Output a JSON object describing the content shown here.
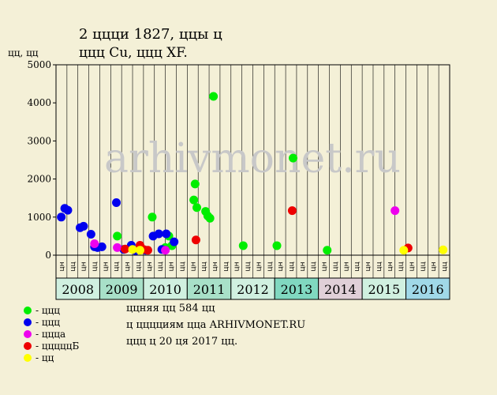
{
  "title_line1": "2 ццци 1827, ццы ц",
  "title_line2": "ццц Cu, ццц XF.",
  "ylabel": "цц, цц",
  "watermark": "arhivmonet.ru",
  "colors": {
    "background": "#f4f0d7",
    "plot_bg": "#f4f0d7",
    "green": "#00ee00",
    "blue": "#0000ee",
    "magenta": "#ee00ee",
    "red": "#ee0000",
    "yellow": "#ffff00",
    "year_light": "#d0f0e0",
    "year_mid": "#a8e0c8",
    "year_teal": "#80d8c0",
    "year_pink": "#e0d0d8",
    "year_blue": "#a0d8e8"
  },
  "legend": [
    {
      "color": "#00ee00",
      "label": "- ццц"
    },
    {
      "color": "#0000ee",
      "label": "- ццц"
    },
    {
      "color": "#ee00ee",
      "label": "- ццца"
    },
    {
      "color": "#ee0000",
      "label": "- цццццБ"
    },
    {
      "color": "#ffff00",
      "label": "- цц"
    }
  ],
  "info": {
    "line1": "ццняя цц 584 цц",
    "line2": "ц цццциям цца ARHIVMONET.RU",
    "line3": "ццц ц 20 ця 2017 цц."
  },
  "chart_data": {
    "type": "scatter",
    "ylim": [
      0,
      5000
    ],
    "yticks": [
      0,
      1000,
      2000,
      3000,
      4000,
      5000
    ],
    "x_unit_labels": [
      "цн",
      "цц",
      "цн",
      "цц"
    ],
    "years": [
      {
        "label": "2008",
        "color": "#d0f0e0"
      },
      {
        "label": "2009",
        "color": "#a8e0c8"
      },
      {
        "label": "2010",
        "color": "#d0f0e0"
      },
      {
        "label": "2011",
        "color": "#a8e0c8"
      },
      {
        "label": "2012",
        "color": "#d0f0e0"
      },
      {
        "label": "2013",
        "color": "#80d8c0"
      },
      {
        "label": "2014",
        "color": "#e0d0d8"
      },
      {
        "label": "2015",
        "color": "#d0f0e0"
      },
      {
        "label": "2016",
        "color": "#a0d8e8"
      }
    ],
    "series": [
      {
        "name": "green",
        "color": "#00ee00",
        "points": [
          [
            2009.4,
            500
          ],
          [
            2010.2,
            1000
          ],
          [
            2010.5,
            200
          ],
          [
            2010.58,
            500
          ],
          [
            2010.65,
            250
          ],
          [
            2011.15,
            1450
          ],
          [
            2011.18,
            1870
          ],
          [
            2011.22,
            1250
          ],
          [
            2011.42,
            1150
          ],
          [
            2011.47,
            1030
          ],
          [
            2011.52,
            970
          ],
          [
            2011.6,
            4170
          ],
          [
            2012.28,
            250
          ],
          [
            2013.05,
            250
          ],
          [
            2013.42,
            2550
          ],
          [
            2014.2,
            130
          ]
        ]
      },
      {
        "name": "blue",
        "color": "#0000ee",
        "points": [
          [
            2008.12,
            1000
          ],
          [
            2008.2,
            1230
          ],
          [
            2008.27,
            1180
          ],
          [
            2008.55,
            720
          ],
          [
            2008.63,
            760
          ],
          [
            2008.8,
            550
          ],
          [
            2008.88,
            220
          ],
          [
            2008.95,
            200
          ],
          [
            2009.05,
            220
          ],
          [
            2009.38,
            1380
          ],
          [
            2009.55,
            150
          ],
          [
            2009.72,
            260
          ],
          [
            2009.82,
            120
          ],
          [
            2010.05,
            130
          ],
          [
            2010.22,
            500
          ],
          [
            2010.35,
            560
          ],
          [
            2010.52,
            560
          ],
          [
            2010.7,
            350
          ],
          [
            2010.42,
            150
          ]
        ]
      },
      {
        "name": "magenta",
        "color": "#ee00ee",
        "points": [
          [
            2008.88,
            300
          ],
          [
            2009.4,
            200
          ],
          [
            2010.5,
            130
          ],
          [
            2015.75,
            1170
          ]
        ]
      },
      {
        "name": "red",
        "color": "#ee0000",
        "points": [
          [
            2009.58,
            160
          ],
          [
            2009.92,
            260
          ],
          [
            2010.0,
            150
          ],
          [
            2010.1,
            130
          ],
          [
            2011.2,
            400
          ],
          [
            2013.4,
            1170
          ],
          [
            2016.05,
            190
          ]
        ]
      },
      {
        "name": "yellow",
        "color": "#ffff00",
        "points": [
          [
            2009.75,
            150
          ],
          [
            2009.92,
            130
          ],
          [
            2015.95,
            130
          ],
          [
            2016.85,
            140
          ]
        ]
      }
    ]
  }
}
